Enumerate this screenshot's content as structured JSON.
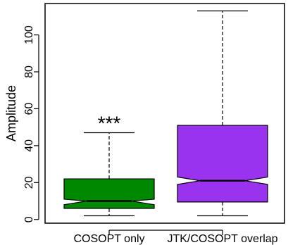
{
  "chart_data": {
    "type": "box",
    "title": "",
    "xlabel": "",
    "ylabel": "Amplitude",
    "ylim": [
      -2,
      117
    ],
    "yticks": [
      0,
      20,
      40,
      60,
      80,
      100
    ],
    "grid": false,
    "categories": [
      "COSOPT only",
      "JTK/COSOPT overlap"
    ],
    "boxes": [
      {
        "label": "COSOPT only",
        "whisker_low": 2,
        "q1": 6,
        "median": 10,
        "q3": 22,
        "whisker_high": 47,
        "notch_low": 8,
        "notch_high": 11,
        "color": "#008800",
        "annotation": "***"
      },
      {
        "label": "JTK/COSOPT overlap",
        "whisker_low": 2,
        "q1": 9.5,
        "median": 21,
        "q3": 51,
        "whisker_high": 113,
        "notch_low": 19,
        "notch_high": 23,
        "color": "#9933ee",
        "annotation": ""
      }
    ]
  }
}
